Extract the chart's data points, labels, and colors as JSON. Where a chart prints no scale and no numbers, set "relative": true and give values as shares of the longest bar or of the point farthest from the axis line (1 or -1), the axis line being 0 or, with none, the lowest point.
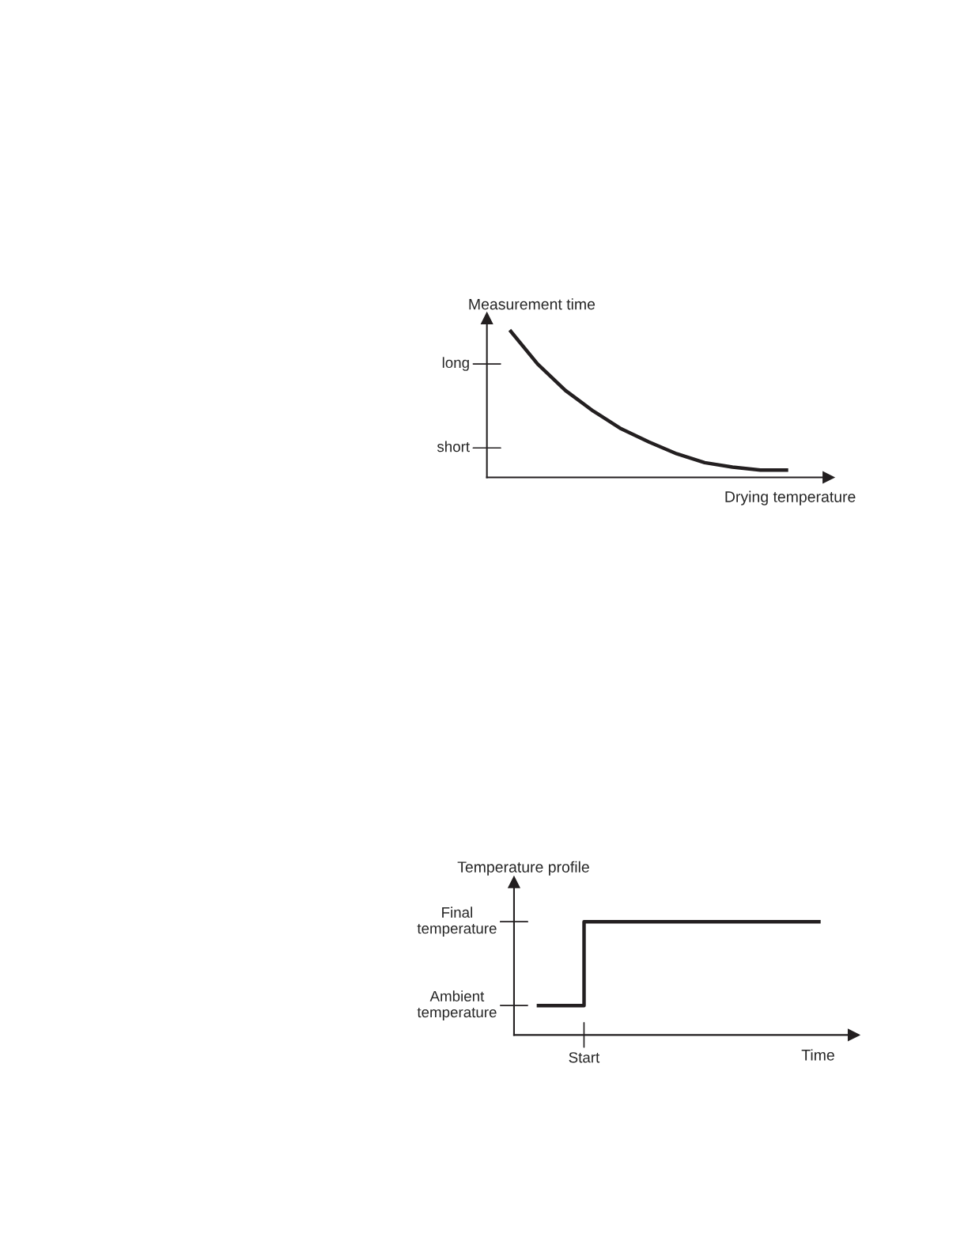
{
  "chart_data": [
    {
      "type": "line",
      "relative": true,
      "ylabel": "Measurement time",
      "xlabel": "Drying temperature",
      "categories": [
        null,
        null,
        null,
        null,
        null,
        null,
        null,
        null,
        null,
        null,
        null
      ],
      "series": [
        {
          "color": "#231f20",
          "values": [
            1,
            0.77,
            0.59,
            0.45,
            0.33,
            0.24,
            0.16,
            0.1,
            0.07,
            0.05,
            0.05
          ]
        }
      ],
      "annotations": [
        "long",
        "short"
      ],
      "legend": false,
      "marker": "none",
      "line_style": "solid"
    },
    {
      "type": "step",
      "relative": true,
      "ylabel": "Temperature profile",
      "xlabel": "Time",
      "categories": [
        null,
        null,
        null,
        null,
        null,
        null,
        null
      ],
      "series": [
        {
          "color": "#231f20",
          "values": [
            0.26,
            1,
            1,
            1,
            1,
            1,
            1
          ]
        }
      ],
      "annotations": [
        "Final temperature",
        "Ambient temperature",
        "Start"
      ],
      "legend": false,
      "marker": "none",
      "line_style": "solid"
    }
  ]
}
